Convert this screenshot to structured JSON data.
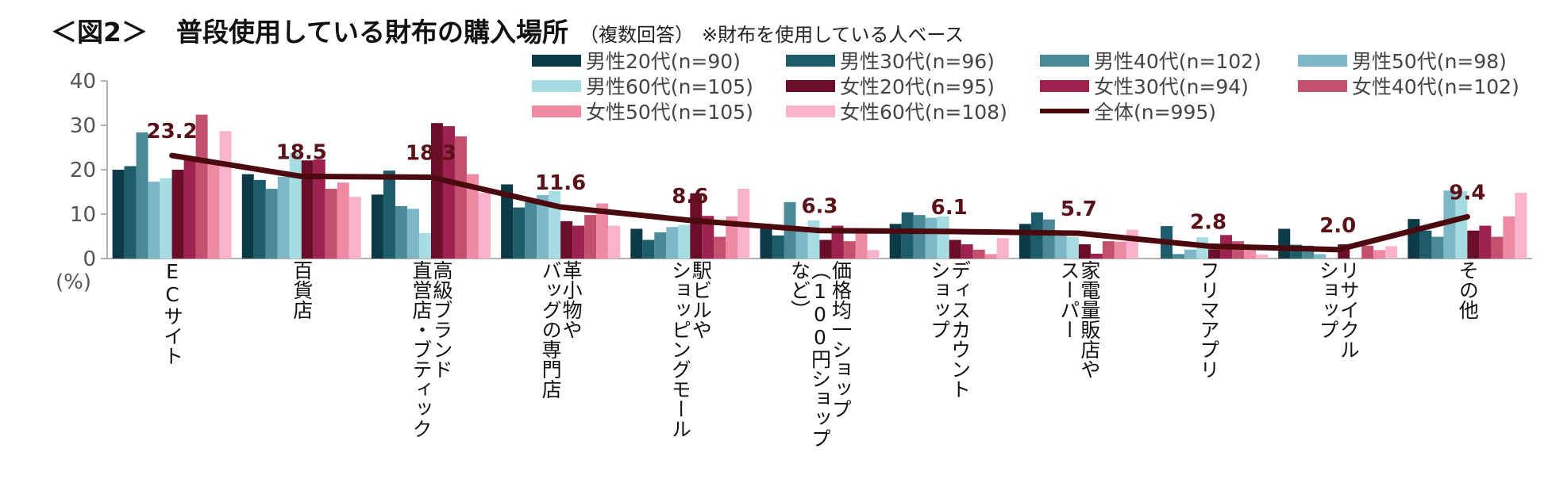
{
  "title": {
    "main_prefix": "＜図2＞",
    "main_text": "普段使用している財布の購入場所",
    "sub": "（複数回答）",
    "note": "※財布を使用している人ベース"
  },
  "y_unit_label": "(%)",
  "chart_data": {
    "type": "bar",
    "ylim": [
      0,
      40
    ],
    "yticks": [
      0,
      10,
      20,
      30,
      40
    ],
    "categories": [
      "ECサイト",
      "百貨店",
      "高級ブランド\n直営店・ブティック",
      "革小物や\nバッグの専門店",
      "駅ビルや\nショッピングモール",
      "価格均一ショップ\n（100円ショップ\nなど）",
      "ディスカウント\nショップ",
      "家電量販店や\nスーパー",
      "フリマアプリ",
      "リサイクル\nショップ",
      "その他"
    ],
    "series": [
      {
        "name": "男性20代(n=90)",
        "color": "#0d3a47",
        "values": [
          20.0,
          19.0,
          14.4,
          16.7,
          6.7,
          7.8,
          7.8,
          7.8,
          0.0,
          6.7,
          8.9
        ]
      },
      {
        "name": "男性30代(n=96)",
        "color": "#1c5c6b",
        "values": [
          20.8,
          17.7,
          19.8,
          11.5,
          4.2,
          5.2,
          10.4,
          10.4,
          7.3,
          3.1,
          6.3
        ]
      },
      {
        "name": "男性40代(n=102)",
        "color": "#4a8a97",
        "values": [
          28.4,
          15.7,
          11.8,
          12.7,
          5.9,
          12.7,
          9.8,
          8.8,
          1.0,
          2.9,
          4.9
        ]
      },
      {
        "name": "男性50代(n=98)",
        "color": "#7db8c8",
        "values": [
          17.3,
          18.4,
          11.2,
          14.3,
          7.1,
          6.1,
          9.2,
          5.1,
          2.0,
          1.0,
          15.3
        ]
      },
      {
        "name": "男性60代(n=105)",
        "color": "#a8dce3",
        "values": [
          18.1,
          23.8,
          5.7,
          15.2,
          7.6,
          8.6,
          9.5,
          4.8,
          4.8,
          0.0,
          15.2
        ]
      },
      {
        "name": "女性20代(n=95)",
        "color": "#6a0e2a",
        "values": [
          20.0,
          22.1,
          30.5,
          8.4,
          14.7,
          4.2,
          4.2,
          3.2,
          2.1,
          3.2,
          6.3
        ]
      },
      {
        "name": "女性30代(n=94)",
        "color": "#9e2250",
        "values": [
          22.3,
          22.3,
          29.8,
          7.4,
          9.6,
          7.4,
          3.2,
          1.1,
          5.3,
          0.0,
          7.4
        ]
      },
      {
        "name": "女性40代(n=102)",
        "color": "#c45070",
        "values": [
          32.4,
          15.7,
          27.5,
          9.8,
          4.9,
          3.9,
          2.0,
          3.9,
          3.9,
          2.9,
          4.9
        ]
      },
      {
        "name": "女性50代(n=105)",
        "color": "#ef8aa5",
        "values": [
          21.9,
          17.1,
          19.0,
          12.4,
          9.5,
          5.7,
          1.0,
          3.8,
          1.9,
          1.9,
          9.5
        ]
      },
      {
        "name": "女性60代(n=108)",
        "color": "#f9b3cd",
        "values": [
          28.7,
          13.9,
          14.8,
          7.4,
          15.7,
          1.9,
          4.6,
          6.5,
          0.9,
          2.8,
          14.8
        ]
      }
    ],
    "total": {
      "name": "全体(n=995)",
      "color": "#4a0a0e",
      "values": [
        23.2,
        18.5,
        18.3,
        11.6,
        8.6,
        6.3,
        6.1,
        5.7,
        2.8,
        2.0,
        9.4
      ]
    }
  }
}
